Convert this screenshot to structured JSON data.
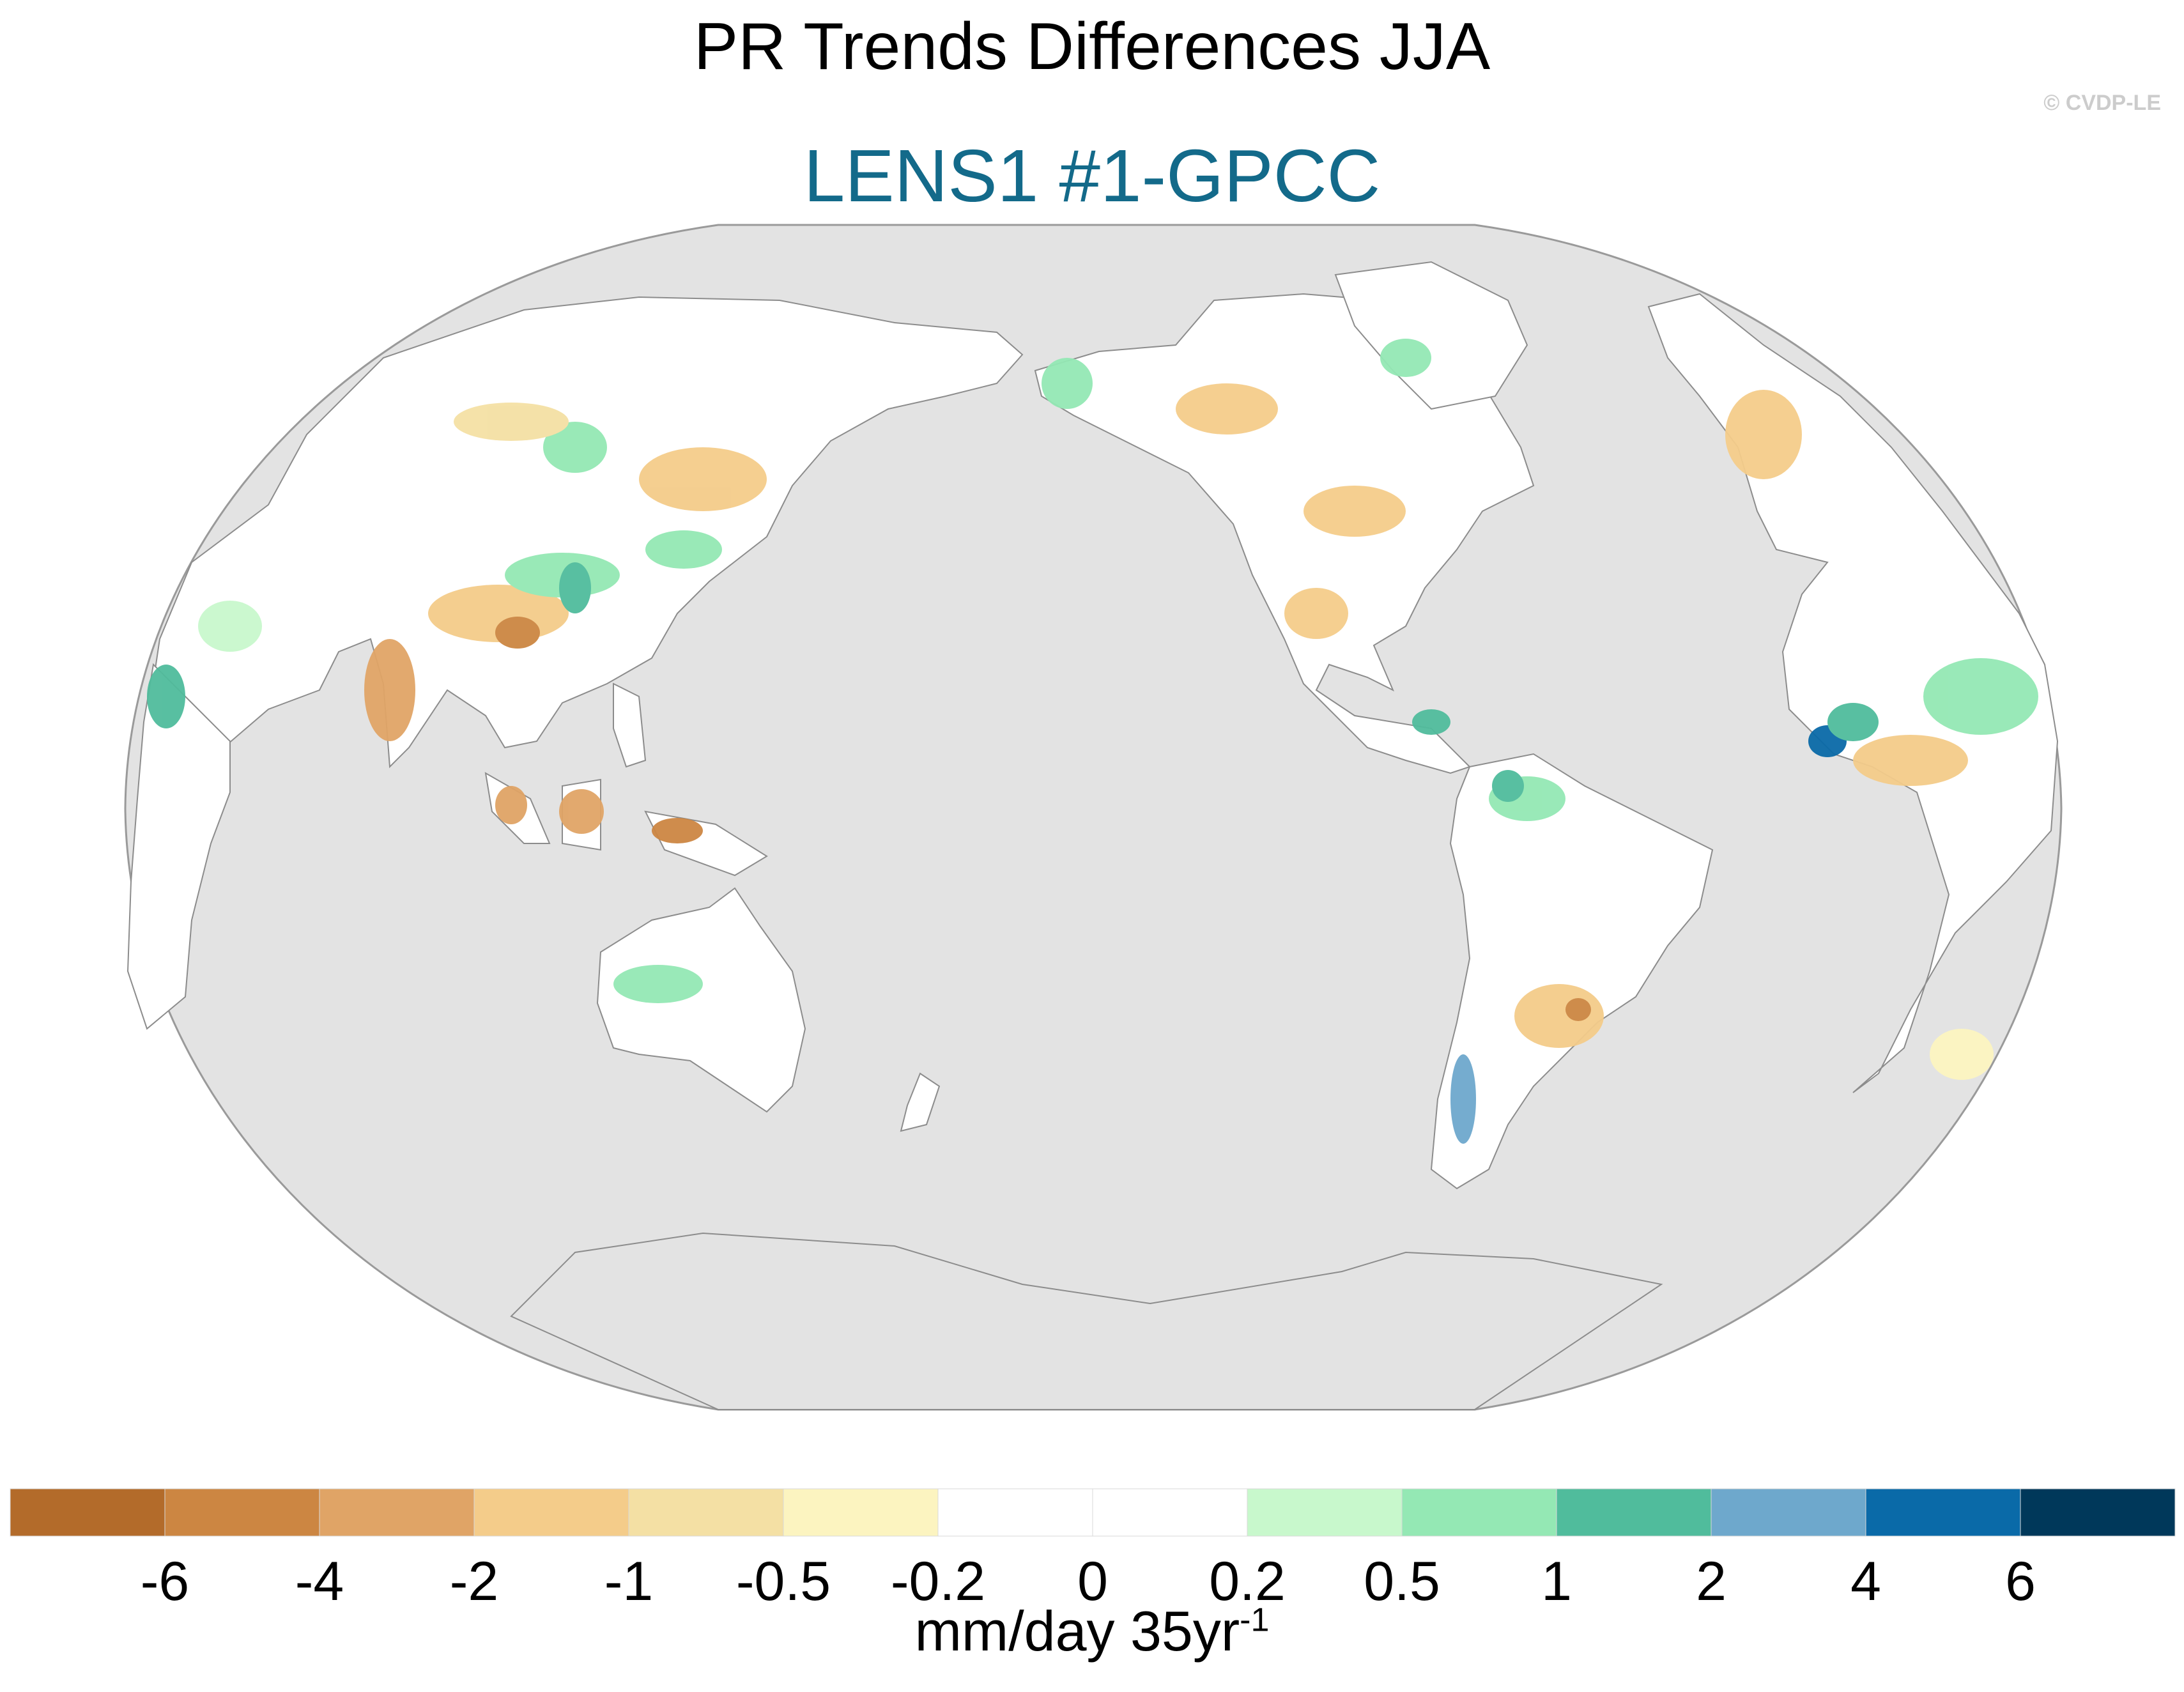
{
  "figure": {
    "title": "PR Trends Differences JJA",
    "subtitle": "LENS1 #1-GPCC",
    "credit": "© CVDP-LE"
  },
  "colors": {
    "subtitle": "#136a8a",
    "ocean": "#e3e3e3",
    "land_base": "#ffffff",
    "coast": "#8c8c8c"
  },
  "map": {
    "projection": "robinson",
    "central_longitude": 180,
    "field": "precipitation trend difference",
    "units": "mm/day 35yr⁻¹",
    "ocean_masked": true
  },
  "colorbar": {
    "colors": [
      "#b36b2a",
      "#cc8642",
      "#e0a466",
      "#f4cc8a",
      "#f4e0a4",
      "#fcf4c0",
      "#ffffff",
      "#ffffff",
      "#c8f8cc",
      "#94e8b4",
      "#50bc9c",
      "#6ea8cc",
      "#0a6aa8",
      "#00385a"
    ],
    "tick_labels": [
      "-6",
      "-4",
      "-2",
      "-1",
      "-0.5",
      "-0.2",
      "0",
      "0.2",
      "0.5",
      "1",
      "2",
      "4",
      "6"
    ],
    "units_main": "mm/day 35yr",
    "units_exp": "-1"
  }
}
